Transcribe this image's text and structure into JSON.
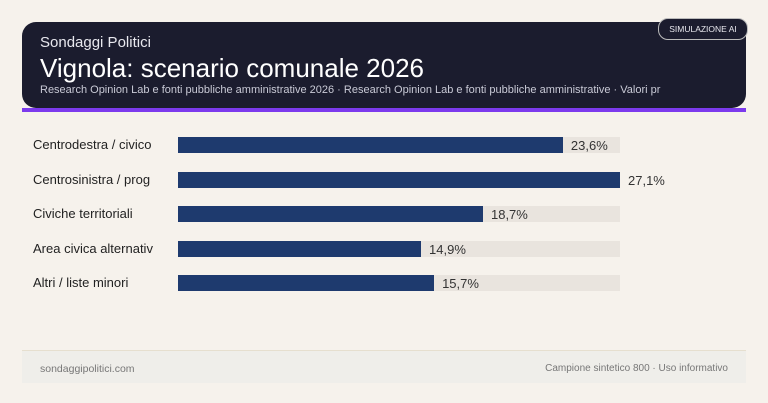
{
  "header": {
    "brand": "Sondaggi Politici",
    "title": "Vignola: scenario comunale 2026",
    "subtitle": "Research Opinion Lab e fonti pubbliche amministrative 2026 · Research Opinion Lab e fonti pubbliche amministrative · Valori pr",
    "badge": "SIMULAZIONE AI"
  },
  "chart_data": {
    "type": "bar",
    "orientation": "horizontal",
    "categories": [
      "Centrodestra / civico",
      "Centrosinistra / prog",
      "Civiche territoriali",
      "Area civica alternativ",
      "Altri / liste minori"
    ],
    "values": [
      23.6,
      27.1,
      18.7,
      14.9,
      15.7
    ],
    "labels": [
      "23,6%",
      "27,1%",
      "18,7%",
      "14,9%",
      "15,7%"
    ],
    "xlim": [
      0,
      27.1
    ],
    "bar_color": "#1e3a6e",
    "track_color": "#e9e4de"
  },
  "footer": {
    "left": "sondaggipolitici.com",
    "right": "Campione sintetico 800 · Uso informativo"
  }
}
